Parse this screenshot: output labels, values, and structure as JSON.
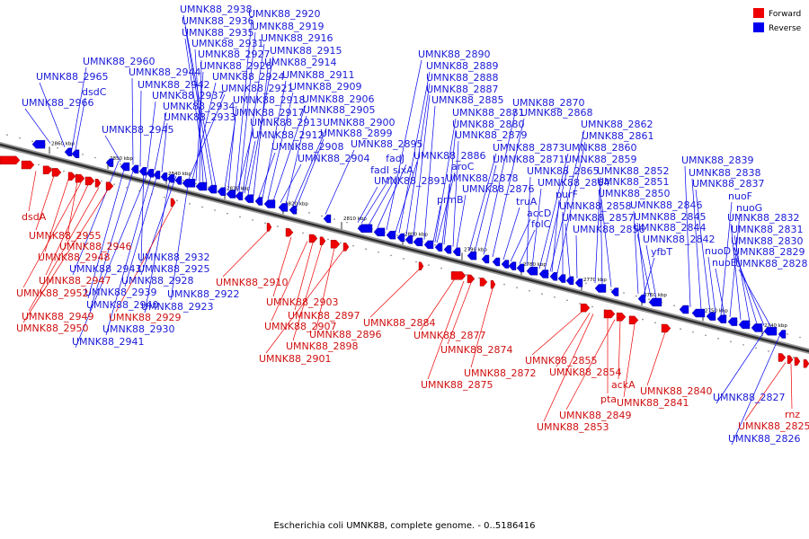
{
  "caption": "Escherichia coli UMNK88, complete genome. - 0..5186416",
  "legend": [
    {
      "label": "Forward",
      "color": "#ee0000"
    },
    {
      "label": "Reverse",
      "color": "#0000ee"
    }
  ],
  "strand_colors": {
    "forward": "#ee0000",
    "reverse": "#0000ee",
    "forward_label": "#d01010",
    "reverse_label": "#1a1ad8"
  },
  "ticks": [
    "2860 kbp",
    "2850 kbp",
    "2840 kbp",
    "2830 kbp",
    "2820 kbp",
    "2810 kbp",
    "2800 kbp",
    "2790 kbp",
    "2780 kbp",
    "2770 kbp",
    "2760 kbp",
    "2750 kbp",
    "2740 kbp"
  ],
  "reverse_labels": [
    "UMNK88_2938",
    "UMNK88_2936",
    "UMNK88_2935",
    "UMNK88_2931",
    "UMNK88_2927",
    "UMNK88_2926",
    "UMNK88_2924",
    "UMNK88_2921",
    "UMNK88_2918",
    "UMNK88_2917",
    "UMNK88_2913",
    "UMNK88_2912",
    "UMNK88_2908",
    "UMNK88_2904",
    "UMNK88_2920",
    "UMNK88_2919",
    "UMNK88_2916",
    "UMNK88_2915",
    "UMNK88_2914",
    "UMNK88_2911",
    "UMNK88_2909",
    "UMNK88_2906",
    "UMNK88_2905",
    "UMNK88_2900",
    "UMNK88_2899",
    "UMNK88_2895",
    "UMNK88_2960",
    "UMNK88_2965",
    "dsdC",
    "UMNK88_2966",
    "UMNK88_2944",
    "UMNK88_2942",
    "UMNK88_2937",
    "UMNK88_2934",
    "UMNK88_2933",
    "UMNK88_2945",
    "UMNK88_2890",
    "UMNK88_2889",
    "UMNK88_2888",
    "UMNK88_2887",
    "UMNK88_2885",
    "UMNK88_2881",
    "UMNK88_2880",
    "UMNK88_2879",
    "fadJ",
    "fadI",
    "sixA",
    "UMNK88_2891",
    "UMNK88_2886",
    "aroC",
    "UMNK88_2878",
    "prmB",
    "UMNK88_2870",
    "UMNK88_2868",
    "UMNK88_2873",
    "UMNK88_2871",
    "UMNK88_2876",
    "truA",
    "accD",
    "folC",
    "UMNK88_2862",
    "UMNK88_2861",
    "UMNK88_2860",
    "UMNK88_2859",
    "UMNK88_2865",
    "UMNK88_2864",
    "purF",
    "UMNK88_2858",
    "UMNK88_2857",
    "UMNK88_2856",
    "UMNK88_2852",
    "UMNK88_2851",
    "UMNK88_2850",
    "UMNK88_2846",
    "UMNK88_2845",
    "UMNK88_2844",
    "UMNK88_2842",
    "yfbT",
    "UMNK88_2839",
    "UMNK88_2838",
    "UMNK88_2837",
    "nuoF",
    "nuoG",
    "UMNK88_2832",
    "UMNK88_2831",
    "UMNK88_2830",
    "UMNK88_2829",
    "UMNK88_2828",
    "nuoD",
    "nuoE",
    "UMNK88_2827",
    "UMNK88_2826",
    "UMNK88_2932",
    "UMNK88_2943",
    "UMNK88_2925",
    "UMNK88_2928",
    "UMNK88_2939",
    "UMNK88_2922",
    "UMNK88_2940",
    "UMNK88_2923",
    "UMNK88_2930",
    "UMNK88_2941"
  ],
  "forward_labels": [
    "dsdA",
    "UMNK88_2955",
    "UMNK88_2946",
    "UMNK88_2948",
    "UMNK88_2947",
    "UMNK88_2952",
    "UMNK88_2949",
    "UMNK88_2950",
    "UMNK88_2929",
    "UMNK88_2910",
    "UMNK88_2903",
    "UMNK88_2907",
    "UMNK88_2897",
    "UMNK88_2896",
    "UMNK88_2898",
    "UMNK88_2901",
    "UMNK88_2884",
    "UMNK88_2877",
    "UMNK88_2874",
    "UMNK88_2872",
    "UMNK88_2875",
    "UMNK88_2855",
    "UMNK88_2854",
    "ackA",
    "pta",
    "UMNK88_2841",
    "UMNK88_2840",
    "UMNK88_2849",
    "UMNK88_2853",
    "rnz",
    "UMNK88_2825"
  ]
}
